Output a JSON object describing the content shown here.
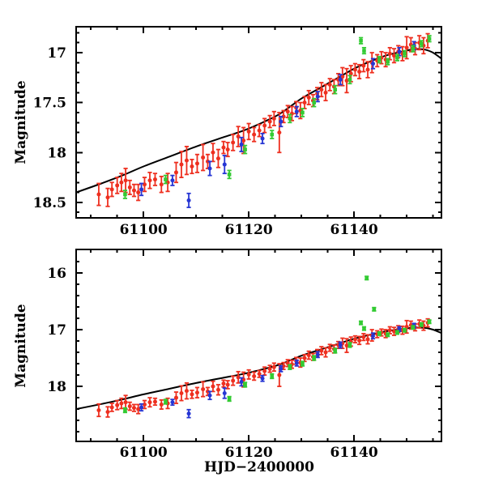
{
  "chart_data": {
    "type": "scatter",
    "title": "",
    "xlabel": "HJD−2400000",
    "ylabel": "Magnitude",
    "grid": false,
    "legend": "none",
    "axes_color": "#000000",
    "background_color": "#ffffff",
    "xlim": [
      61087.2,
      61156.6
    ],
    "x_ticks": {
      "major": [
        61100,
        61120,
        61140
      ],
      "labels": [
        "61100",
        "61120",
        "61140"
      ],
      "minor": [
        61090,
        61095,
        61105,
        61110,
        61115,
        61125,
        61130,
        61135,
        61145,
        61150,
        61155
      ]
    },
    "panels": [
      {
        "name": "top",
        "note": "zoomed magnitude range, axis inverted (bright up)",
        "ylim_top_to_bottom": [
          16.74,
          18.655
        ],
        "y_ticks_major": [
          17,
          17.5,
          18,
          18.5
        ],
        "y_tick_labels": [
          "17",
          "17.5",
          "18",
          "18.5"
        ],
        "y_ticks_minor": [
          16.8,
          16.9,
          17.1,
          17.2,
          17.3,
          17.4,
          17.6,
          17.7,
          17.8,
          17.9,
          18.1,
          18.2,
          18.3,
          18.4,
          18.6
        ]
      },
      {
        "name": "bottom",
        "note": "full magnitude range showing bright outliers, axis inverted",
        "ylim_top_to_bottom": [
          15.586,
          18.97
        ],
        "y_ticks_major": [
          16,
          17,
          18
        ],
        "y_tick_labels": [
          "16",
          "17",
          "18"
        ],
        "y_ticks_minor": [
          15.8,
          16.2,
          16.4,
          16.6,
          16.8,
          17.2,
          17.4,
          17.6,
          17.8,
          18.2,
          18.4,
          18.6,
          18.8
        ]
      }
    ],
    "model_curve": {
      "color": "#000000",
      "points": [
        [
          61087.2,
          18.4
        ],
        [
          61092,
          18.31
        ],
        [
          61096,
          18.23
        ],
        [
          61100,
          18.14
        ],
        [
          61105,
          18.04
        ],
        [
          61110,
          17.94
        ],
        [
          61115,
          17.85
        ],
        [
          61119,
          17.78
        ],
        [
          61123,
          17.69
        ],
        [
          61126,
          17.61
        ],
        [
          61130,
          17.46
        ],
        [
          61134,
          17.34
        ],
        [
          61137,
          17.25
        ],
        [
          61140,
          17.16
        ],
        [
          61143,
          17.09
        ],
        [
          61146,
          17.03
        ],
        [
          61149,
          16.99
        ],
        [
          61151.5,
          16.965
        ],
        [
          61153.5,
          16.97
        ],
        [
          61155,
          17.0
        ],
        [
          61156.6,
          17.06
        ]
      ]
    },
    "series": [
      {
        "name": "red-points",
        "color": "#ee2f1f",
        "marker": "circle",
        "points": [
          [
            61091.5,
            18.42,
            0.11
          ],
          [
            61093.2,
            18.45,
            0.09
          ],
          [
            61094.0,
            18.37,
            0.07
          ],
          [
            61095.0,
            18.33,
            0.08
          ],
          [
            61095.8,
            18.3,
            0.09
          ],
          [
            61096.6,
            18.28,
            0.12
          ],
          [
            61097.4,
            18.35,
            0.07
          ],
          [
            61098.2,
            18.38,
            0.06
          ],
          [
            61099.0,
            18.4,
            0.08
          ],
          [
            61100.2,
            18.32,
            0.07
          ],
          [
            61101.2,
            18.28,
            0.08
          ],
          [
            61102.2,
            18.27,
            0.06
          ],
          [
            61103.4,
            18.32,
            0.08
          ],
          [
            61104.6,
            18.3,
            0.09
          ],
          [
            61106.2,
            18.2,
            0.1
          ],
          [
            61107.2,
            18.12,
            0.13
          ],
          [
            61108.2,
            18.08,
            0.14
          ],
          [
            61109.2,
            18.14,
            0.07
          ],
          [
            61110.2,
            18.11,
            0.09
          ],
          [
            61111.3,
            18.05,
            0.13
          ],
          [
            61112.2,
            18.09,
            0.07
          ],
          [
            61113.2,
            18.0,
            0.09
          ],
          [
            61114.2,
            18.06,
            0.09
          ],
          [
            61115.2,
            17.95,
            0.06
          ],
          [
            61116.0,
            17.97,
            0.07
          ],
          [
            61117.0,
            17.9,
            0.08
          ],
          [
            61118.0,
            17.84,
            0.1
          ],
          [
            61119.0,
            17.88,
            0.13
          ],
          [
            61120.0,
            17.79,
            0.08
          ],
          [
            61121.0,
            17.82,
            0.07
          ],
          [
            61122.0,
            17.78,
            0.06
          ],
          [
            61123.0,
            17.73,
            0.07
          ],
          [
            61124.0,
            17.69,
            0.06
          ],
          [
            61124.8,
            17.66,
            0.07
          ],
          [
            61125.8,
            17.8,
            0.2
          ],
          [
            61126.6,
            17.64,
            0.06
          ],
          [
            61127.4,
            17.59,
            0.06
          ],
          [
            61128.2,
            17.61,
            0.07
          ],
          [
            61129.0,
            17.55,
            0.06
          ],
          [
            61129.8,
            17.58,
            0.08
          ],
          [
            61130.6,
            17.5,
            0.06
          ],
          [
            61131.4,
            17.45,
            0.07
          ],
          [
            61132.2,
            17.48,
            0.06
          ],
          [
            61133.0,
            17.41,
            0.06
          ],
          [
            61133.8,
            17.37,
            0.07
          ],
          [
            61134.6,
            17.4,
            0.08
          ],
          [
            61135.4,
            17.32,
            0.06
          ],
          [
            61136.2,
            17.34,
            0.07
          ],
          [
            61137.0,
            17.27,
            0.06
          ],
          [
            61137.8,
            17.24,
            0.09
          ],
          [
            61138.6,
            17.28,
            0.12
          ],
          [
            61139.4,
            17.21,
            0.08
          ],
          [
            61140.2,
            17.17,
            0.06
          ],
          [
            61141.0,
            17.19,
            0.07
          ],
          [
            61141.8,
            17.13,
            0.06
          ],
          [
            61142.6,
            17.17,
            0.08
          ],
          [
            61143.4,
            17.1,
            0.1
          ],
          [
            61144.4,
            17.08,
            0.06
          ],
          [
            61145.2,
            17.05,
            0.06
          ],
          [
            61146.0,
            17.07,
            0.07
          ],
          [
            61146.8,
            17.01,
            0.06
          ],
          [
            61147.6,
            17.03,
            0.07
          ],
          [
            61148.4,
            16.99,
            0.06
          ],
          [
            61149.2,
            17.01,
            0.07
          ],
          [
            61150.0,
            16.95,
            0.11
          ],
          [
            61150.8,
            16.92,
            0.07
          ],
          [
            61151.6,
            16.96,
            0.06
          ],
          [
            61152.4,
            16.9,
            0.07
          ],
          [
            61153.2,
            16.93,
            0.08
          ],
          [
            61154.0,
            16.88,
            0.07
          ]
        ]
      },
      {
        "name": "blue-points",
        "color": "#2636d4",
        "marker": "circle",
        "points": [
          [
            61099.6,
            18.37,
            0.06
          ],
          [
            61105.5,
            18.28,
            0.05
          ],
          [
            61108.6,
            18.48,
            0.07
          ],
          [
            61112.6,
            18.16,
            0.07
          ],
          [
            61115.4,
            18.12,
            0.09
          ],
          [
            61118.6,
            17.92,
            0.07
          ],
          [
            61122.6,
            17.86,
            0.05
          ],
          [
            61126.1,
            17.69,
            0.05
          ],
          [
            61129.1,
            17.59,
            0.05
          ],
          [
            61133.1,
            17.44,
            0.05
          ],
          [
            61137.4,
            17.27,
            0.05
          ],
          [
            61143.6,
            17.11,
            0.05
          ],
          [
            61148.6,
            16.99,
            0.04
          ],
          [
            61151.4,
            16.93,
            0.04
          ]
        ]
      },
      {
        "name": "green-points",
        "color": "#33cb33",
        "marker": "square",
        "points": [
          [
            61096.5,
            18.42,
            0.04
          ],
          [
            61104.2,
            18.27,
            0.04
          ],
          [
            61116.3,
            18.22,
            0.04
          ],
          [
            61119.3,
            17.97,
            0.04
          ],
          [
            61124.4,
            17.82,
            0.04
          ],
          [
            61127.8,
            17.66,
            0.04
          ],
          [
            61130.2,
            17.6,
            0.04
          ],
          [
            61132.4,
            17.5,
            0.04
          ],
          [
            61136.4,
            17.37,
            0.04
          ],
          [
            61139.2,
            17.27,
            0.04
          ],
          [
            61141.3,
            16.88,
            0.03
          ],
          [
            61141.9,
            16.98,
            0.03
          ],
          [
            61142.4,
            16.09,
            0.03
          ],
          [
            61143.8,
            16.64,
            0.03
          ],
          [
            61144.8,
            17.07,
            0.03
          ],
          [
            61146.4,
            17.09,
            0.03
          ],
          [
            61148.2,
            17.05,
            0.03
          ],
          [
            61149.6,
            17.01,
            0.03
          ],
          [
            61151.2,
            16.96,
            0.03
          ],
          [
            61152.8,
            16.91,
            0.03
          ],
          [
            61154.3,
            16.86,
            0.03
          ]
        ]
      }
    ]
  }
}
